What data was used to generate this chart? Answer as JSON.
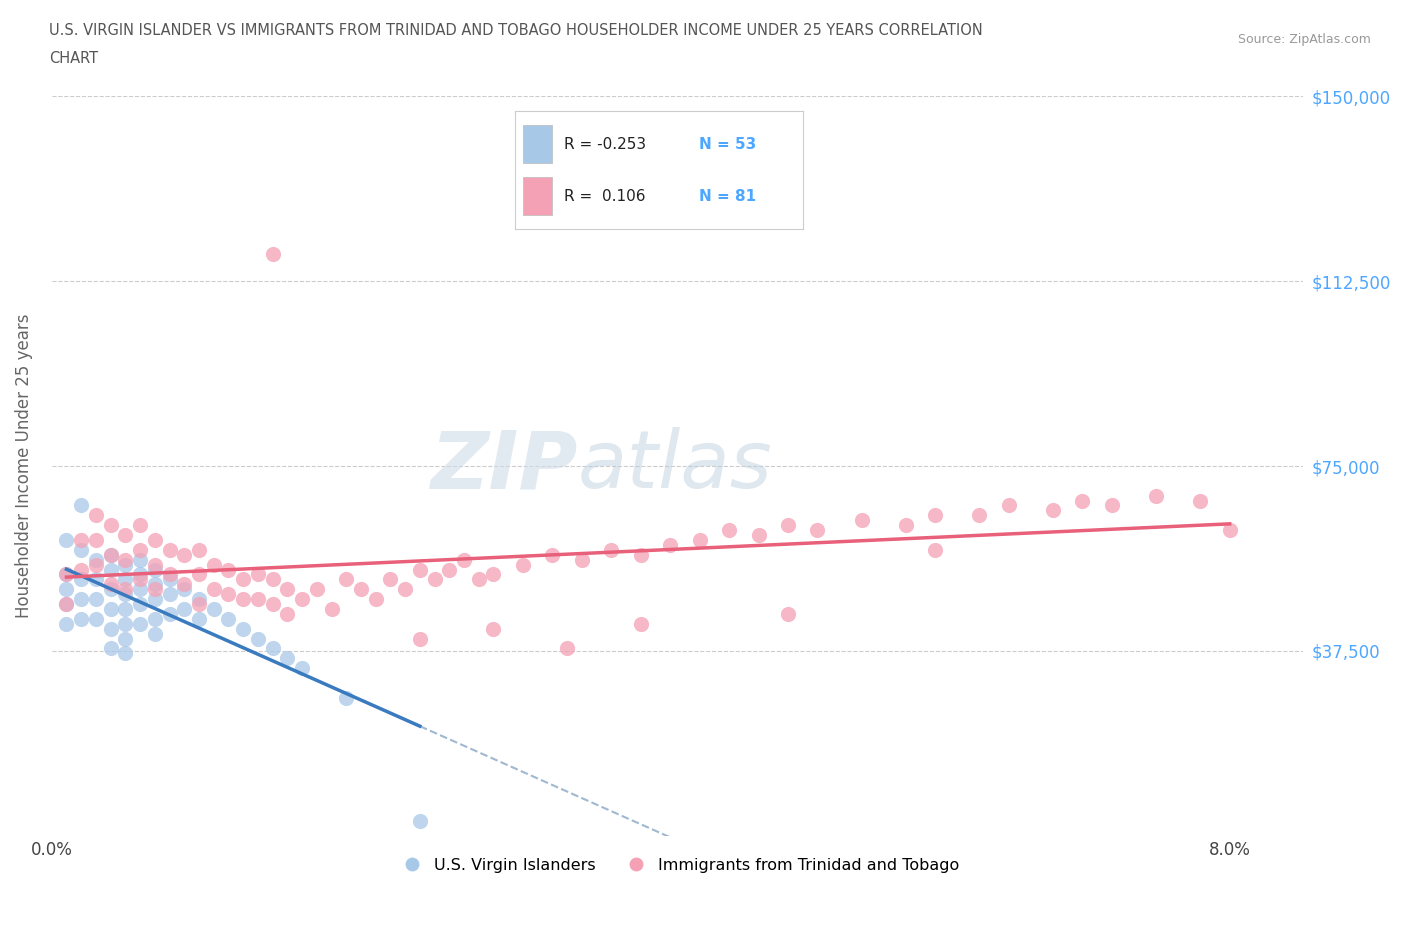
{
  "title_line1": "U.S. VIRGIN ISLANDER VS IMMIGRANTS FROM TRINIDAD AND TOBAGO HOUSEHOLDER INCOME UNDER 25 YEARS CORRELATION",
  "title_line2": "CHART",
  "source_text": "Source: ZipAtlas.com",
  "ylabel": "Householder Income Under 25 years",
  "xlim": [
    0.0,
    0.085
  ],
  "ylim": [
    0,
    150000
  ],
  "yticks": [
    0,
    37500,
    75000,
    112500,
    150000
  ],
  "ytick_labels": [
    "",
    "$37,500",
    "$75,000",
    "$112,500",
    "$150,000"
  ],
  "xticks": [
    0.0,
    0.01,
    0.02,
    0.03,
    0.04,
    0.05,
    0.06,
    0.07,
    0.08
  ],
  "xtick_labels": [
    "0.0%",
    "",
    "",
    "",
    "",
    "",
    "",
    "",
    "8.0%"
  ],
  "r_blue": -0.253,
  "n_blue": 53,
  "r_pink": 0.106,
  "n_pink": 81,
  "blue_color": "#a8c8e8",
  "pink_color": "#f4a0b5",
  "blue_line_color": "#3a7abf",
  "pink_line_color": "#e8607a",
  "dashed_line_color": "#a0b8d0",
  "watermark_zip": "ZIP",
  "watermark_atlas": "atlas",
  "legend_label_blue": "U.S. Virgin Islanders",
  "legend_label_pink": "Immigrants from Trinidad and Tobago",
  "blue_x": [
    0.001,
    0.001,
    0.001,
    0.001,
    0.001,
    0.002,
    0.002,
    0.002,
    0.002,
    0.002,
    0.003,
    0.003,
    0.003,
    0.003,
    0.004,
    0.004,
    0.004,
    0.004,
    0.004,
    0.004,
    0.005,
    0.005,
    0.005,
    0.005,
    0.005,
    0.005,
    0.005,
    0.006,
    0.006,
    0.006,
    0.006,
    0.006,
    0.007,
    0.007,
    0.007,
    0.007,
    0.007,
    0.008,
    0.008,
    0.008,
    0.009,
    0.009,
    0.01,
    0.01,
    0.011,
    0.012,
    0.013,
    0.014,
    0.015,
    0.016,
    0.017,
    0.02,
    0.025
  ],
  "blue_y": [
    53000,
    50000,
    60000,
    47000,
    43000,
    58000,
    52000,
    48000,
    44000,
    67000,
    56000,
    52000,
    48000,
    44000,
    57000,
    54000,
    50000,
    46000,
    42000,
    38000,
    55000,
    52000,
    49000,
    46000,
    43000,
    40000,
    37000,
    56000,
    53000,
    50000,
    47000,
    43000,
    54000,
    51000,
    48000,
    44000,
    41000,
    52000,
    49000,
    45000,
    50000,
    46000,
    48000,
    44000,
    46000,
    44000,
    42000,
    40000,
    38000,
    36000,
    34000,
    28000,
    3000
  ],
  "pink_x": [
    0.001,
    0.001,
    0.002,
    0.002,
    0.003,
    0.003,
    0.003,
    0.004,
    0.004,
    0.004,
    0.005,
    0.005,
    0.005,
    0.006,
    0.006,
    0.006,
    0.007,
    0.007,
    0.007,
    0.008,
    0.008,
    0.009,
    0.009,
    0.01,
    0.01,
    0.01,
    0.011,
    0.011,
    0.012,
    0.012,
    0.013,
    0.013,
    0.014,
    0.014,
    0.015,
    0.015,
    0.016,
    0.016,
    0.017,
    0.018,
    0.019,
    0.02,
    0.021,
    0.022,
    0.023,
    0.024,
    0.025,
    0.026,
    0.027,
    0.028,
    0.029,
    0.03,
    0.032,
    0.034,
    0.036,
    0.038,
    0.04,
    0.042,
    0.044,
    0.046,
    0.048,
    0.05,
    0.052,
    0.055,
    0.058,
    0.06,
    0.063,
    0.065,
    0.068,
    0.07,
    0.072,
    0.075,
    0.078,
    0.08,
    0.025,
    0.03,
    0.035,
    0.04,
    0.05,
    0.06,
    0.015
  ],
  "pink_y": [
    53000,
    47000,
    60000,
    54000,
    65000,
    60000,
    55000,
    63000,
    57000,
    51000,
    61000,
    56000,
    50000,
    63000,
    58000,
    52000,
    60000,
    55000,
    50000,
    58000,
    53000,
    57000,
    51000,
    58000,
    53000,
    47000,
    55000,
    50000,
    54000,
    49000,
    52000,
    48000,
    53000,
    48000,
    52000,
    47000,
    50000,
    45000,
    48000,
    50000,
    46000,
    52000,
    50000,
    48000,
    52000,
    50000,
    54000,
    52000,
    54000,
    56000,
    52000,
    53000,
    55000,
    57000,
    56000,
    58000,
    57000,
    59000,
    60000,
    62000,
    61000,
    63000,
    62000,
    64000,
    63000,
    65000,
    65000,
    67000,
    66000,
    68000,
    67000,
    69000,
    68000,
    62000,
    40000,
    42000,
    38000,
    43000,
    45000,
    58000,
    118000
  ]
}
